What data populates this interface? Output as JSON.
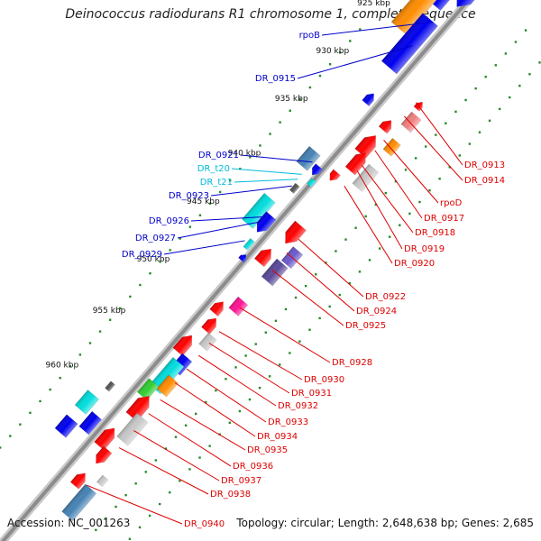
{
  "title": "Deinococcus radiodurans R1 chromosome 1, complete sequence",
  "footer": {
    "accession": "Accession: NC_001263",
    "summary": "Topology: circular; Length: 2,648,638 bp; Genes: 2,685"
  },
  "colors": {
    "backbone": "#8c8c8c",
    "ticks": "#2a8a2a",
    "cds": "#ff0000",
    "gene_blue": "#0000ee",
    "trna": "#00dddd",
    "orange": "#ff8c00",
    "olive": "#6b8e23",
    "purple": "#5a4a9a",
    "magenta": "#ff1493",
    "grey": "#c8c8c8",
    "label_blue": "#0000cc",
    "label_cyan": "#00bbdd",
    "label_red": "#dd0000"
  },
  "scale_labels": [
    "925 kbp",
    "930 kbp",
    "935 kbp",
    "940 kbp",
    "945 kbp",
    "950 kbp",
    "955 kbp",
    "960 kbp"
  ],
  "left_labels": [
    {
      "text": "rpoB",
      "color": "label_blue"
    },
    {
      "text": "DR_0915",
      "color": "label_blue"
    },
    {
      "text": "DR_0921",
      "color": "label_blue"
    },
    {
      "text": "DR_t20",
      "color": "label_cyan"
    },
    {
      "text": "DR_t21",
      "color": "label_cyan"
    },
    {
      "text": "DR_0923",
      "color": "label_blue"
    },
    {
      "text": "DR_0926",
      "color": "label_blue"
    },
    {
      "text": "DR_0927",
      "color": "label_blue"
    },
    {
      "text": "DR_0929",
      "color": "label_blue"
    }
  ],
  "right_labels": [
    "DR_0913",
    "DR_0914",
    "rpoD",
    "DR_0917",
    "DR_0918",
    "DR_0919",
    "DR_0920",
    "DR_0922",
    "DR_0924",
    "DR_0925",
    "DR_0928",
    "DR_0930",
    "DR_0931",
    "DR_0932",
    "DR_0933",
    "DR_0934",
    "DR_0935",
    "DR_0936",
    "DR_0937",
    "DR_0938",
    "DR_0940"
  ]
}
